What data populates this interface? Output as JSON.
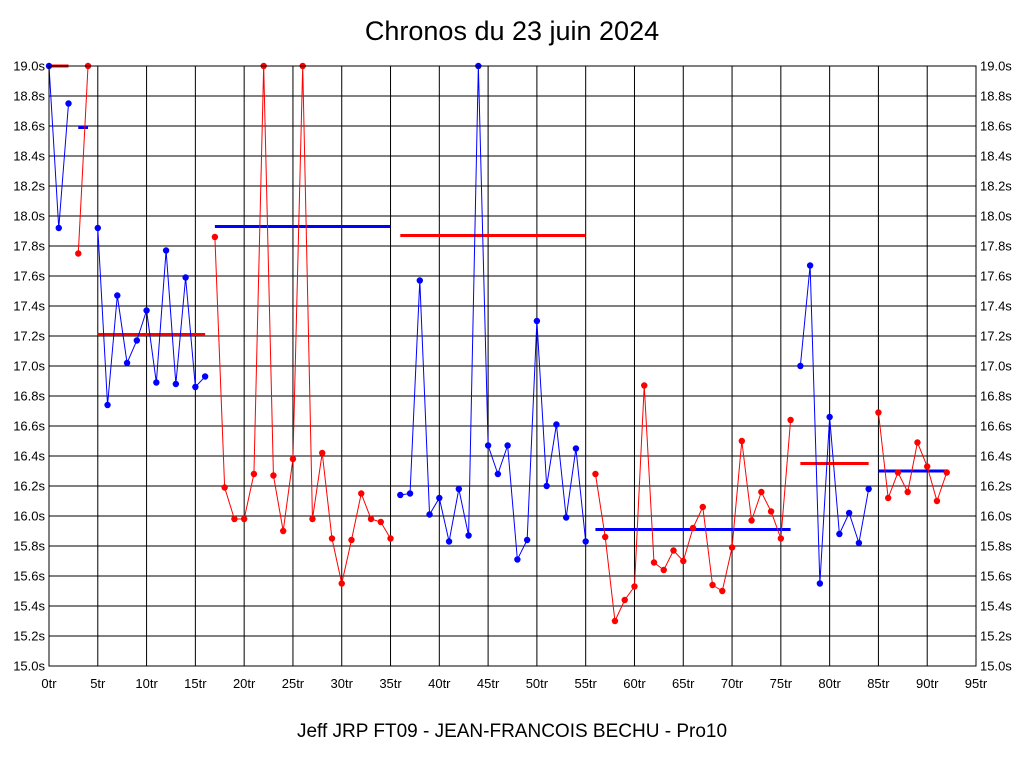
{
  "chart_data": {
    "type": "line",
    "title": "Chronos du 23 juin 2024",
    "subtitle": "Jeff JRP FT09 - JEAN-FRANCOIS BECHU - Pro10",
    "xlim": [
      0,
      95
    ],
    "ylim": [
      15.0,
      19.0
    ],
    "x_ticks": [
      0,
      5,
      10,
      15,
      20,
      25,
      30,
      35,
      40,
      45,
      50,
      55,
      60,
      65,
      70,
      75,
      80,
      85,
      90,
      95
    ],
    "x_tick_suffix": "tr",
    "y_ticks": [
      15.0,
      15.2,
      15.4,
      15.6,
      15.8,
      16.0,
      16.2,
      16.4,
      16.6,
      16.8,
      17.0,
      17.2,
      17.4,
      17.6,
      17.8,
      18.0,
      18.2,
      18.4,
      18.6,
      18.8,
      19.0
    ],
    "y_tick_suffix": "s",
    "grid": true,
    "y_axis_both_sides": true,
    "series": [
      {
        "color": "#0000ff",
        "x": [
          0,
          1,
          2
        ],
        "y": [
          19.0,
          17.92,
          18.75
        ]
      },
      {
        "color": "#ff0000",
        "x": [
          3,
          4
        ],
        "y": [
          17.75,
          19.0
        ]
      },
      {
        "color": "#0000ff",
        "x": [
          5,
          6,
          7,
          8,
          9,
          10,
          11,
          12,
          13,
          14,
          15,
          16
        ],
        "y": [
          17.92,
          16.74,
          17.47,
          17.02,
          17.17,
          17.37,
          16.89,
          17.77,
          16.88,
          17.59,
          16.86,
          16.93
        ]
      },
      {
        "color": "#ff0000",
        "x": [
          17,
          18,
          19,
          20,
          21,
          22,
          23,
          24,
          25,
          26,
          27,
          28,
          29,
          30,
          31,
          32,
          33,
          34,
          35
        ],
        "y": [
          17.86,
          16.19,
          15.98,
          15.98,
          16.28,
          19.0,
          16.27,
          15.9,
          16.38,
          19.0,
          15.98,
          16.42,
          15.85,
          15.55,
          15.84,
          16.15,
          15.98,
          15.96,
          15.85
        ]
      },
      {
        "color": "#0000ff",
        "x": [
          36,
          37,
          38,
          39,
          40,
          41,
          42,
          43,
          44,
          45,
          46,
          47,
          48,
          49,
          50,
          51,
          52,
          53,
          54,
          55
        ],
        "y": [
          16.14,
          16.15,
          17.57,
          16.01,
          16.12,
          15.83,
          16.18,
          15.87,
          19.0,
          16.47,
          16.28,
          16.47,
          15.71,
          15.84,
          17.3,
          16.2,
          16.61,
          15.99,
          16.45,
          15.83
        ]
      },
      {
        "color": "#ff0000",
        "x": [
          56,
          57,
          58,
          59,
          60,
          61,
          62,
          63,
          64,
          65,
          66,
          67,
          68,
          69,
          70,
          71,
          72,
          73,
          74,
          75,
          76
        ],
        "y": [
          16.28,
          15.86,
          15.3,
          15.44,
          15.53,
          16.87,
          15.69,
          15.64,
          15.77,
          15.7,
          15.92,
          16.06,
          15.54,
          15.5,
          15.79,
          16.5,
          15.97,
          16.16,
          16.03,
          15.85,
          16.64
        ]
      },
      {
        "color": "#0000ff",
        "x": [
          77,
          78,
          79,
          80,
          81,
          82,
          83,
          84
        ],
        "y": [
          17.0,
          17.67,
          15.55,
          16.66,
          15.88,
          16.02,
          15.82,
          16.18
        ]
      },
      {
        "color": "#ff0000",
        "x": [
          85,
          86,
          87,
          88,
          89,
          90,
          91,
          92
        ],
        "y": [
          16.69,
          16.12,
          16.29,
          16.16,
          16.49,
          16.33,
          16.1,
          16.29
        ]
      }
    ],
    "average_lines": [
      {
        "color": "#ff0000",
        "x": [
          0,
          2
        ],
        "y": 19.0
      },
      {
        "color": "#0000ff",
        "x": [
          3,
          4
        ],
        "y": 18.59
      },
      {
        "color": "#ff0000",
        "x": [
          5,
          16
        ],
        "y": 17.21
      },
      {
        "color": "#0000ff",
        "x": [
          17,
          35
        ],
        "y": 17.93
      },
      {
        "color": "#ff0000",
        "x": [
          36,
          55
        ],
        "y": 17.87
      },
      {
        "color": "#0000ff",
        "x": [
          56,
          76
        ],
        "y": 15.91
      },
      {
        "color": "#ff0000",
        "x": [
          77,
          84
        ],
        "y": 16.35
      },
      {
        "color": "#0000ff",
        "x": [
          85,
          92
        ],
        "y": 16.3
      }
    ]
  }
}
